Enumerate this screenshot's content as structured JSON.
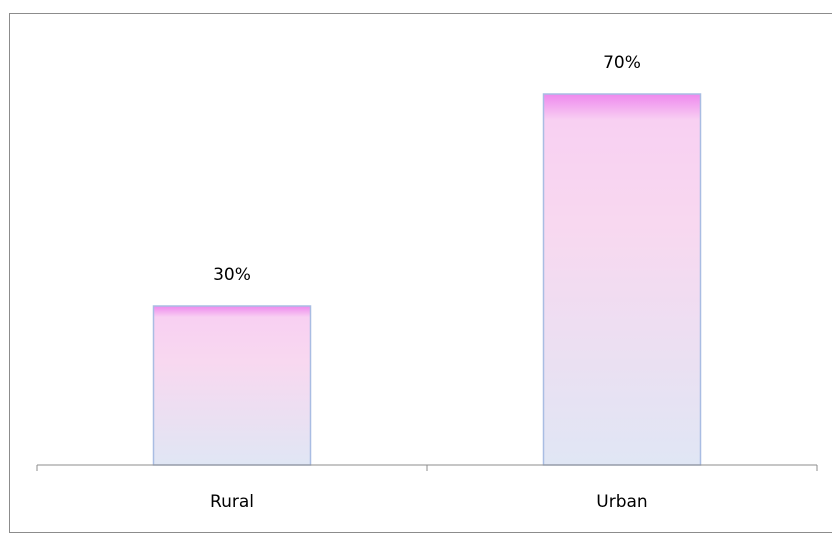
{
  "chart_data": {
    "type": "bar",
    "title": "",
    "xlabel": "",
    "ylabel": "",
    "categories": [
      "Rural",
      "Urban"
    ],
    "values": [
      30,
      70
    ],
    "data_labels": [
      "30%",
      "70%"
    ],
    "unit": "%",
    "ylim": [
      0,
      70
    ],
    "grid": false,
    "legend": "none",
    "colors": {
      "bar_top": "#ee88ee",
      "bar_mid": "#f8d8f0",
      "bar_bottom": "#e0e6f4",
      "bar_edge": "#a9bde3",
      "axis": "#8c8c8c"
    }
  }
}
